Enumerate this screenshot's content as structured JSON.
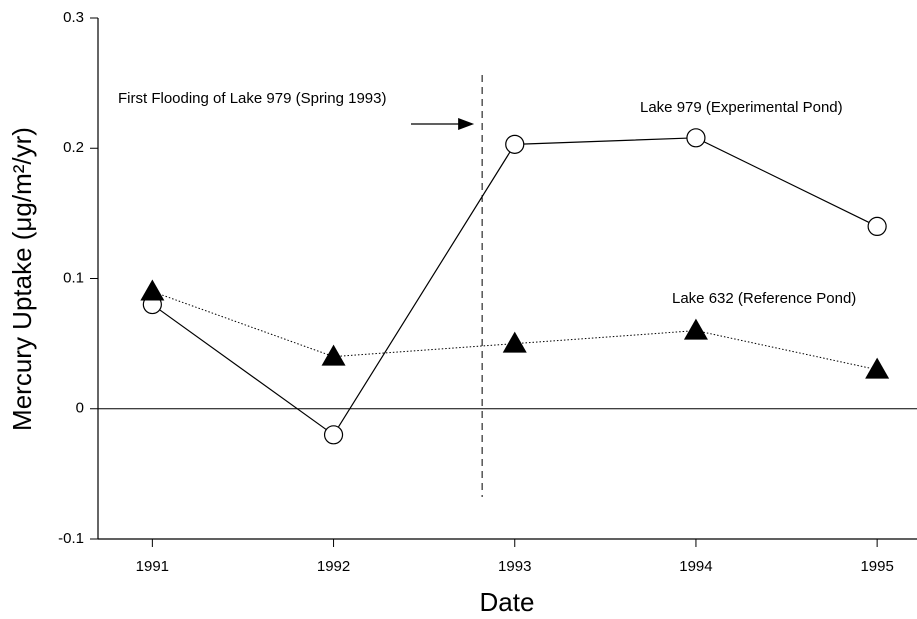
{
  "chart_data": {
    "type": "line",
    "xlabel": "Date",
    "ylabel": "Mercury Uptake (μg/m²/yr)",
    "x": [
      1991,
      1992,
      1993,
      1994,
      1995
    ],
    "series": [
      {
        "name": "Lake 979 (Experimental Pond)",
        "color": "#000000",
        "marker": "circle",
        "dash": "solid",
        "values": [
          0.08,
          -0.02,
          0.203,
          0.208,
          0.14
        ]
      },
      {
        "name": "Lake 632 (Reference Pond)",
        "color": "#000000",
        "marker": "triangle",
        "dash": "dotted",
        "values": [
          0.09,
          0.04,
          0.05,
          0.06,
          0.03
        ]
      }
    ],
    "xlim": [
      1990.7,
      1995.22
    ],
    "ylim": [
      -0.1,
      0.3
    ],
    "xticks": [
      1991,
      1992,
      1993,
      1994,
      1995
    ],
    "yticks": [
      -0.1,
      0,
      0.1,
      0.2,
      0.3
    ],
    "zero_line": true,
    "annotation": {
      "text": "First Flooding of Lake 979 (Spring 1993)",
      "x": 1992.82
    }
  }
}
